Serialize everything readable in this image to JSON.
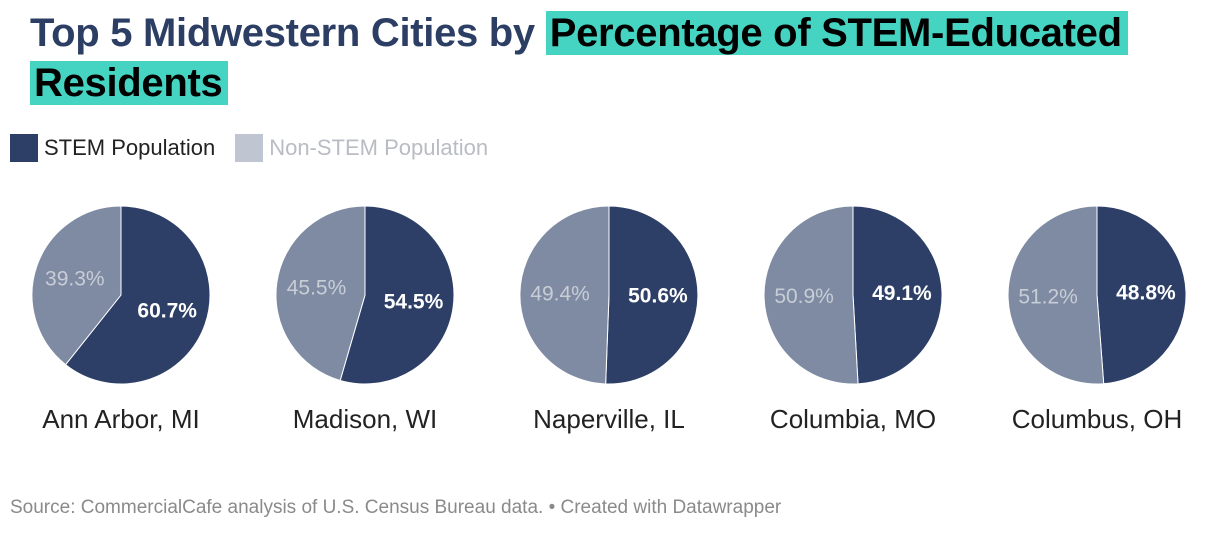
{
  "title": {
    "plain": "Top 5 Midwestern Cities by ",
    "highlight": "Percentage of STEM-Educated Residents"
  },
  "legend": [
    {
      "label": "STEM Population",
      "color": "#2d3f66"
    },
    {
      "label": "Non-STEM Population",
      "color": "#c0c6d1"
    }
  ],
  "colors": {
    "stem": "#2d3f66",
    "non_stem": "#7e8ba3",
    "title_text": "#2c3e63",
    "highlight": "#46d4c2"
  },
  "chart_data": {
    "type": "pie",
    "series_names": [
      "STEM Population",
      "Non-STEM Population"
    ],
    "pies": [
      {
        "category": "Ann Arbor, MI",
        "stem": 60.7,
        "non_stem": 39.3,
        "stem_label": "60.7%",
        "non_stem_label": "39.3%"
      },
      {
        "category": "Madison, WI",
        "stem": 54.5,
        "non_stem": 45.5,
        "stem_label": "54.5%",
        "non_stem_label": "45.5%"
      },
      {
        "category": "Naperville, IL",
        "stem": 50.6,
        "non_stem": 49.4,
        "stem_label": "50.6%",
        "non_stem_label": "49.4%"
      },
      {
        "category": "Columbia, MO",
        "stem": 49.1,
        "non_stem": 50.9,
        "stem_label": "49.1%",
        "non_stem_label": "50.9%"
      },
      {
        "category": "Columbus, OH",
        "stem": 48.8,
        "non_stem": 51.2,
        "stem_label": "48.8%",
        "non_stem_label": "51.2%"
      }
    ]
  },
  "footer": {
    "source": "Source: CommercialCafe analysis of U.S. Census Bureau data. • Created with Datawrapper"
  }
}
